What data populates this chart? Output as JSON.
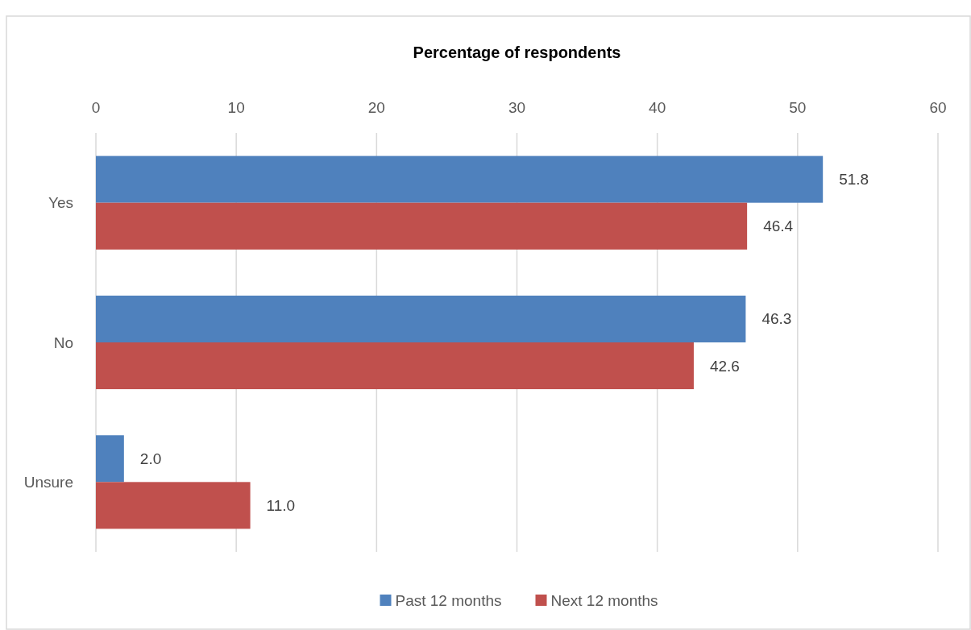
{
  "chart_data": {
    "type": "bar",
    "orientation": "horizontal",
    "title": "Percentage of respondents",
    "categories": [
      "Yes",
      "No",
      "Unsure"
    ],
    "series": [
      {
        "name": "Past 12 months",
        "color": "#4f81bd",
        "values": [
          51.8,
          46.3,
          2.0
        ],
        "value_labels": [
          "51.8",
          "46.3",
          "2.0"
        ]
      },
      {
        "name": "Next 12 months",
        "color": "#c0504d",
        "values": [
          46.4,
          42.6,
          11.0
        ],
        "value_labels": [
          "46.4",
          "42.6",
          "11.0"
        ]
      }
    ],
    "xlim": [
      0,
      60
    ],
    "xticks": [
      0,
      10,
      20,
      30,
      40,
      50,
      60
    ],
    "grid": "x",
    "legend": "bottom"
  }
}
